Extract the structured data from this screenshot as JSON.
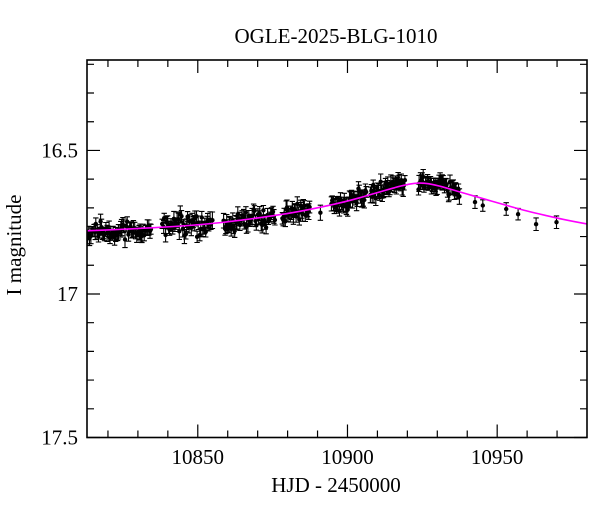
{
  "title": "OGLE-2025-BLG-1010",
  "colors": {
    "background": "#ffffff",
    "axis": "#000000",
    "data_points": "#000000",
    "model_curve": "#ff00ff"
  },
  "chart_data": {
    "type": "scatter",
    "title": "OGLE-2025-BLG-1010",
    "xlabel": "HJD - 2450000",
    "ylabel": "I magnitude",
    "xlim": [
      10813,
      10980
    ],
    "ylim": [
      17.5,
      16.185
    ],
    "y_axis_inverted_magnitude": true,
    "grid": false,
    "x_ticks": {
      "major": [
        10850,
        10900,
        10950
      ],
      "minor_step": 10
    },
    "y_ticks": {
      "major": [
        16.5,
        17,
        17.5
      ],
      "minor_step": 0.1
    },
    "series": [
      {
        "name": "microlensing-model",
        "type": "line",
        "color": "#ff00ff",
        "points": [
          [
            10813,
            16.78
          ],
          [
            10822,
            16.776
          ],
          [
            10832,
            16.771
          ],
          [
            10842,
            16.765
          ],
          [
            10850,
            16.759
          ],
          [
            10858,
            16.751
          ],
          [
            10866,
            16.741
          ],
          [
            10874,
            16.729
          ],
          [
            10882,
            16.716
          ],
          [
            10890,
            16.7
          ],
          [
            10897,
            16.684
          ],
          [
            10904,
            16.665
          ],
          [
            10910,
            16.647
          ],
          [
            10915,
            16.632
          ],
          [
            10919,
            16.621
          ],
          [
            10923,
            16.614
          ],
          [
            10927,
            16.616
          ],
          [
            10931,
            16.625
          ],
          [
            10936,
            16.64
          ],
          [
            10942,
            16.658
          ],
          [
            10948,
            16.676
          ],
          [
            10954,
            16.694
          ],
          [
            10960,
            16.711
          ],
          [
            10966,
            16.726
          ],
          [
            10972,
            16.74
          ],
          [
            10980,
            16.756
          ]
        ]
      },
      {
        "name": "ogle-i-band-photometry",
        "type": "scatter_errorbars",
        "color": "#000000",
        "seed": 20251010,
        "error_mag_range": [
          0.016,
          0.029
        ],
        "segments": [
          {
            "t0": 10813.0,
            "t1": 10834.5,
            "n": 60,
            "sigma": 0.015,
            "bias": 0.003
          },
          {
            "t0": 10838.0,
            "t1": 10855.0,
            "n": 48,
            "sigma": 0.019,
            "bias": 0.0
          },
          {
            "t0": 10858.5,
            "t1": 10876.0,
            "n": 48,
            "sigma": 0.018,
            "bias": 0.001
          },
          {
            "t0": 10878.0,
            "t1": 10887.5,
            "n": 28,
            "sigma": 0.014,
            "bias": 0.0
          },
          {
            "t0": 10890.5,
            "t1": 10891.1,
            "n": 1,
            "sigma": 0.008,
            "bias": 0.012
          },
          {
            "t0": 10894.5,
            "t1": 10906.5,
            "n": 36,
            "sigma": 0.015,
            "bias": 0.0
          },
          {
            "t0": 10907.5,
            "t1": 10919.3,
            "n": 38,
            "sigma": 0.013,
            "bias": -0.006
          },
          {
            "t0": 10923.5,
            "t1": 10937.5,
            "n": 42,
            "sigma": 0.013,
            "bias": -0.002
          }
        ],
        "sparse_points": [
          {
            "t": 10942.6,
            "mag": 16.68,
            "err": 0.022
          },
          {
            "t": 10945.2,
            "mag": 16.692,
            "err": 0.02
          },
          {
            "t": 10953.0,
            "mag": 16.704,
            "err": 0.022
          },
          {
            "t": 10957.0,
            "mag": 16.722,
            "err": 0.02
          },
          {
            "t": 10963.0,
            "mag": 16.757,
            "err": 0.022
          },
          {
            "t": 10969.8,
            "mag": 16.75,
            "err": 0.022
          }
        ]
      }
    ]
  }
}
